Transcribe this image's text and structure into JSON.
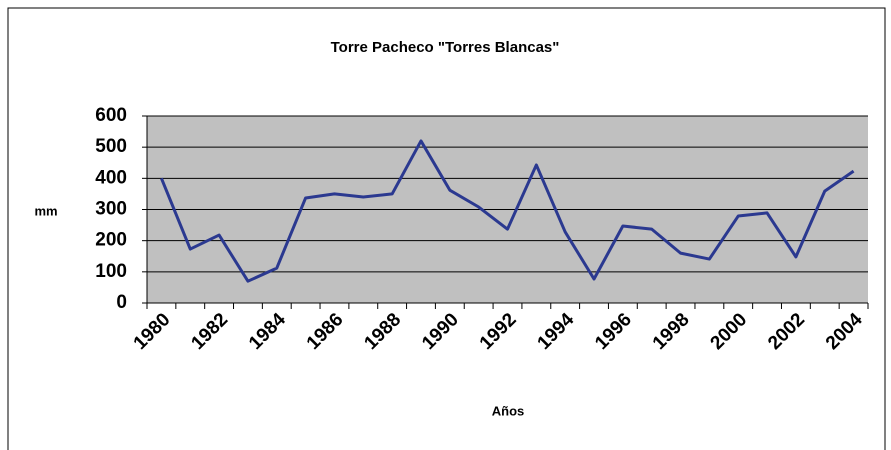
{
  "chart_data": {
    "type": "line",
    "title": "Torre Pacheco \"Torres Blancas\"",
    "xlabel": "Años",
    "ylabel": "mm",
    "categories": [
      "1980",
      null,
      "1982",
      null,
      "1984",
      null,
      "1986",
      null,
      "1988",
      null,
      "1990",
      null,
      "1992",
      null,
      "1994",
      null,
      "1996",
      null,
      "1998",
      null,
      "2000",
      null,
      "2002",
      null,
      "2004"
    ],
    "values": [
      400,
      173,
      218,
      70,
      112,
      337,
      350,
      340,
      350,
      520,
      362,
      308,
      237,
      443,
      228,
      77,
      247,
      237,
      160,
      141,
      279,
      289,
      148,
      359,
      423
    ],
    "color": "#2b3990",
    "ylim": [
      0,
      600
    ],
    "yticks": [
      0,
      100,
      200,
      300,
      400,
      500,
      600
    ],
    "grid": true
  }
}
